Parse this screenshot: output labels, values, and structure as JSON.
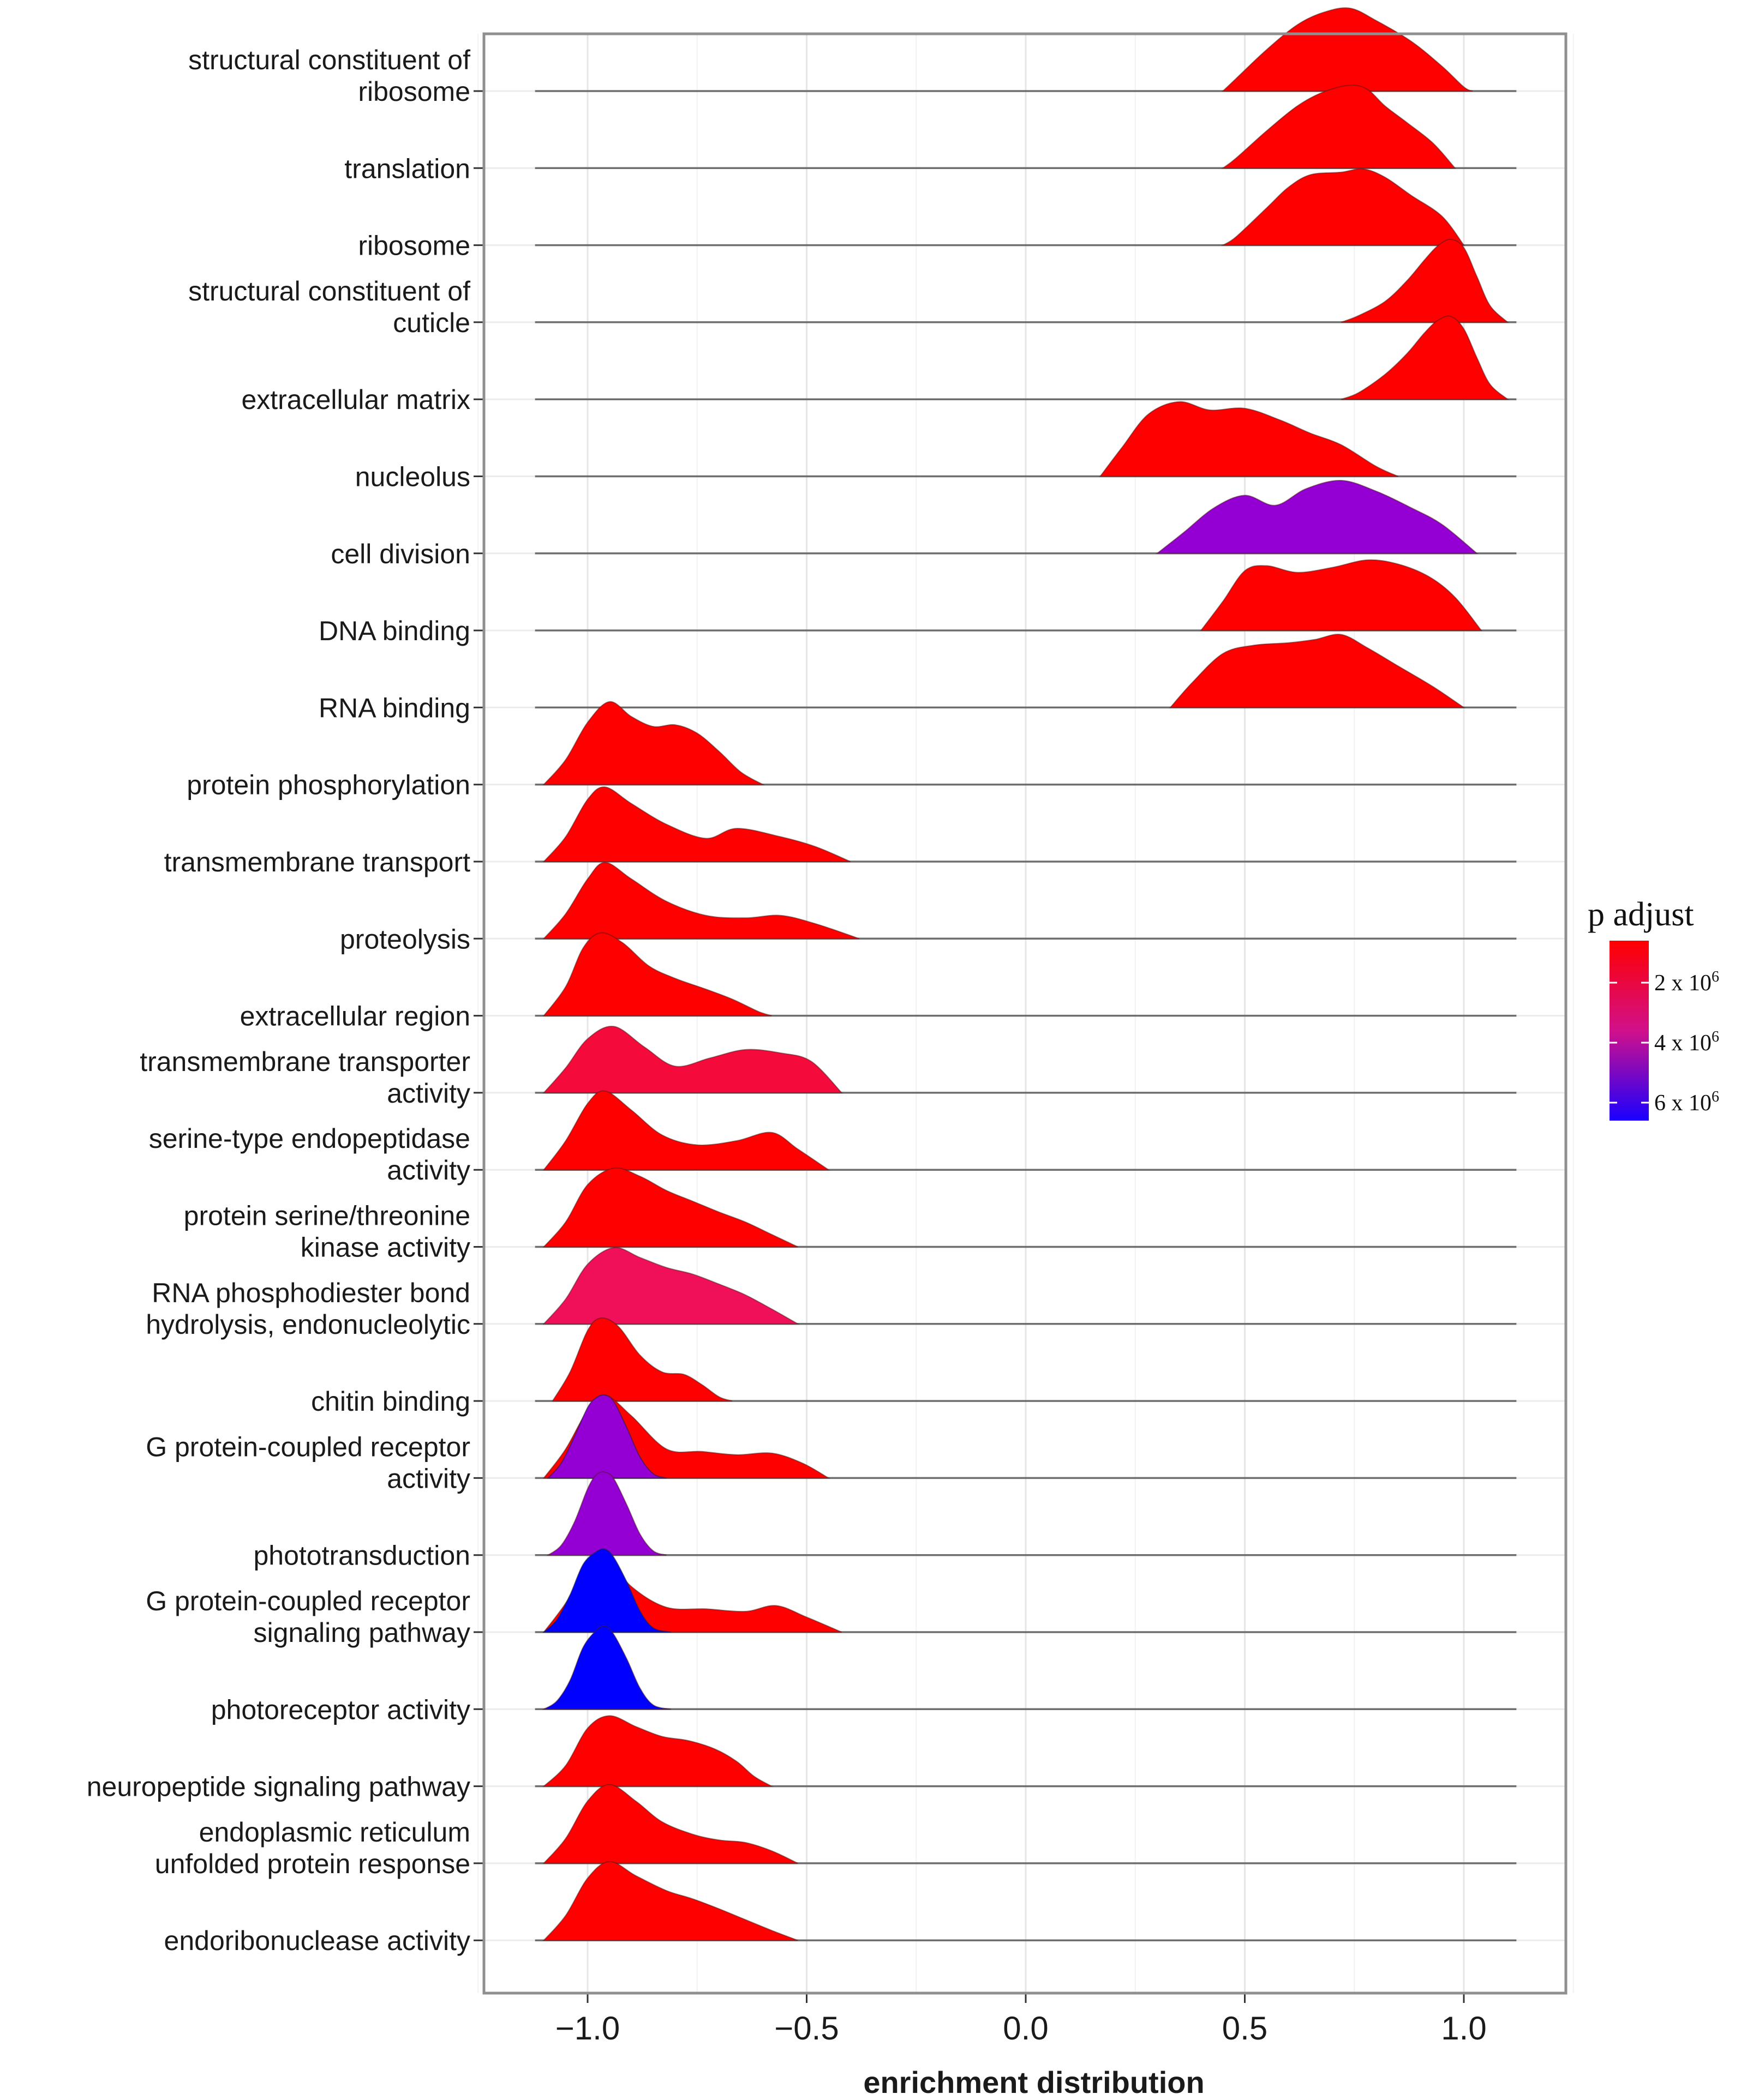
{
  "chart_data": {
    "type": "ridgeline",
    "xlabel": "enrichment distribution",
    "ylabel": "",
    "xlim": [
      -1.25,
      1.25
    ],
    "xticks": [
      -1.0,
      -0.5,
      0.0,
      0.5,
      1.0
    ],
    "xtick_labels": [
      "−1.0",
      "−0.5",
      "0.0",
      "0.5",
      "1.0"
    ],
    "grid": true,
    "legend": {
      "title": "p adjust",
      "placement": "right",
      "colors": [
        "#ff0000",
        "#9400d3",
        "#0000ff"
      ],
      "entries": [
        {
          "label": "2 x 10",
          "sup": "6",
          "value": 2
        },
        {
          "label": "4 x 10",
          "sup": "6",
          "value": 4
        },
        {
          "label": "6 x 10",
          "sup": "6",
          "value": 6
        }
      ],
      "range": [
        0.6,
        6.6
      ]
    },
    "baseline_range": [
      -1.12,
      1.12
    ],
    "series": [
      {
        "name": "structural constituent of ribosome",
        "label_lines": [
          "structural constituent of",
          "ribosome"
        ],
        "color": "#ff0000",
        "x": [
          0.45,
          0.48,
          0.55,
          0.62,
          0.68,
          0.74,
          0.8,
          0.88,
          0.95,
          1.0,
          1.02
        ],
        "density": [
          0,
          0.15,
          0.5,
          0.8,
          0.95,
          1.0,
          0.85,
          0.6,
          0.3,
          0.05,
          0
        ]
      },
      {
        "name": "translation",
        "label_lines": [
          "translation"
        ],
        "color": "#ff0000",
        "x": [
          0.45,
          0.48,
          0.55,
          0.62,
          0.68,
          0.74,
          0.78,
          0.82,
          0.87,
          0.93,
          0.98
        ],
        "density": [
          0,
          0.12,
          0.45,
          0.75,
          0.92,
          1.0,
          0.95,
          0.75,
          0.55,
          0.3,
          0
        ]
      },
      {
        "name": "ribosome",
        "label_lines": [
          "ribosome"
        ],
        "color": "#ff0000",
        "x": [
          0.45,
          0.48,
          0.55,
          0.6,
          0.65,
          0.72,
          0.77,
          0.82,
          0.88,
          0.95,
          1.0
        ],
        "density": [
          0,
          0.1,
          0.45,
          0.7,
          0.85,
          0.88,
          0.92,
          0.82,
          0.6,
          0.35,
          0
        ]
      },
      {
        "name": "structural constituent of cuticle",
        "label_lines": [
          "structural constituent of",
          "cuticle"
        ],
        "color": "#ff0000",
        "x": [
          0.72,
          0.76,
          0.82,
          0.87,
          0.91,
          0.94,
          0.97,
          1.0,
          1.03,
          1.06,
          1.1
        ],
        "density": [
          0,
          0.08,
          0.25,
          0.5,
          0.75,
          0.92,
          1.0,
          0.9,
          0.55,
          0.2,
          0
        ]
      },
      {
        "name": "extracellular matrix",
        "label_lines": [
          "extracellular matrix"
        ],
        "color": "#ff0000",
        "x": [
          0.72,
          0.76,
          0.82,
          0.87,
          0.91,
          0.94,
          0.97,
          1.0,
          1.03,
          1.06,
          1.1
        ],
        "density": [
          0,
          0.08,
          0.3,
          0.55,
          0.8,
          0.95,
          1.0,
          0.85,
          0.5,
          0.18,
          0
        ]
      },
      {
        "name": "nucleolus",
        "label_lines": [
          "nucleolus"
        ],
        "color": "#ff0000",
        "x": [
          0.17,
          0.22,
          0.28,
          0.35,
          0.42,
          0.5,
          0.58,
          0.65,
          0.72,
          0.8,
          0.85
        ],
        "density": [
          0,
          0.35,
          0.75,
          0.9,
          0.8,
          0.82,
          0.68,
          0.52,
          0.38,
          0.12,
          0
        ]
      },
      {
        "name": "cell division",
        "label_lines": [
          "cell division"
        ],
        "color": "#9400d3",
        "x": [
          0.3,
          0.36,
          0.43,
          0.5,
          0.57,
          0.64,
          0.72,
          0.8,
          0.88,
          0.95,
          1.03
        ],
        "density": [
          0,
          0.25,
          0.55,
          0.7,
          0.58,
          0.78,
          0.88,
          0.75,
          0.55,
          0.35,
          0
        ]
      },
      {
        "name": "DNA binding",
        "label_lines": [
          "DNA binding"
        ],
        "color": "#ff0000",
        "x": [
          0.4,
          0.45,
          0.5,
          0.55,
          0.62,
          0.7,
          0.78,
          0.85,
          0.92,
          0.98,
          1.04
        ],
        "density": [
          0,
          0.35,
          0.72,
          0.78,
          0.7,
          0.76,
          0.85,
          0.8,
          0.65,
          0.4,
          0
        ]
      },
      {
        "name": "RNA binding",
        "label_lines": [
          "RNA binding"
        ],
        "color": "#ff0000",
        "x": [
          0.33,
          0.38,
          0.45,
          0.52,
          0.6,
          0.66,
          0.72,
          0.78,
          0.85,
          0.93,
          1.0
        ],
        "density": [
          0,
          0.3,
          0.65,
          0.75,
          0.78,
          0.82,
          0.88,
          0.72,
          0.5,
          0.25,
          0
        ]
      },
      {
        "name": "protein phosphorylation",
        "label_lines": [
          "protein phosphorylation"
        ],
        "color": "#ff0000",
        "x": [
          -1.1,
          -1.05,
          -1.0,
          -0.95,
          -0.9,
          -0.85,
          -0.8,
          -0.75,
          -0.7,
          -0.65,
          -0.6
        ],
        "density": [
          0,
          0.3,
          0.75,
          1.0,
          0.82,
          0.7,
          0.72,
          0.62,
          0.4,
          0.15,
          0
        ]
      },
      {
        "name": "transmembrane transport",
        "label_lines": [
          "transmembrane transport"
        ],
        "color": "#ff0000",
        "x": [
          -1.1,
          -1.05,
          -1.0,
          -0.96,
          -0.9,
          -0.82,
          -0.73,
          -0.66,
          -0.56,
          -0.48,
          -0.4
        ],
        "density": [
          0,
          0.3,
          0.75,
          0.9,
          0.7,
          0.45,
          0.28,
          0.4,
          0.3,
          0.18,
          0
        ]
      },
      {
        "name": "proteolysis",
        "label_lines": [
          "proteolysis"
        ],
        "color": "#ff0000",
        "x": [
          -1.1,
          -1.05,
          -1.0,
          -0.96,
          -0.9,
          -0.82,
          -0.73,
          -0.64,
          -0.56,
          -0.48,
          -0.38
        ],
        "density": [
          0,
          0.3,
          0.72,
          0.92,
          0.72,
          0.45,
          0.28,
          0.25,
          0.28,
          0.18,
          0
        ]
      },
      {
        "name": "extracellular region",
        "label_lines": [
          "extracellular region"
        ],
        "color": "#ff0000",
        "x": [
          -1.1,
          -1.05,
          -1.01,
          -0.97,
          -0.92,
          -0.86,
          -0.8,
          -0.73,
          -0.67,
          -0.61,
          -0.58
        ],
        "density": [
          0,
          0.35,
          0.82,
          1.0,
          0.88,
          0.6,
          0.45,
          0.32,
          0.2,
          0.05,
          0
        ]
      },
      {
        "name": "transmembrane transporter activity",
        "label_lines": [
          "transmembrane transporter",
          "activity"
        ],
        "color": "#f50a3c",
        "x": [
          -1.1,
          -1.05,
          -1.0,
          -0.94,
          -0.87,
          -0.8,
          -0.72,
          -0.64,
          -0.56,
          -0.49,
          -0.42
        ],
        "density": [
          0,
          0.3,
          0.65,
          0.8,
          0.55,
          0.32,
          0.42,
          0.52,
          0.48,
          0.38,
          0
        ]
      },
      {
        "name": "serine-type endopeptidase activity",
        "label_lines": [
          "serine-type endopeptidase",
          "activity"
        ],
        "color": "#ff0000",
        "x": [
          -1.1,
          -1.05,
          -1.0,
          -0.96,
          -0.9,
          -0.83,
          -0.75,
          -0.66,
          -0.58,
          -0.52,
          -0.45
        ],
        "density": [
          0,
          0.35,
          0.8,
          0.95,
          0.72,
          0.42,
          0.3,
          0.35,
          0.45,
          0.25,
          0
        ]
      },
      {
        "name": "protein serine/threonine kinase activity",
        "label_lines": [
          "protein serine/threonine",
          "kinase activity"
        ],
        "color": "#ff0000",
        "x": [
          -1.1,
          -1.05,
          -1.0,
          -0.94,
          -0.88,
          -0.82,
          -0.76,
          -0.7,
          -0.64,
          -0.58,
          -0.52
        ],
        "density": [
          0,
          0.3,
          0.75,
          0.95,
          0.85,
          0.68,
          0.55,
          0.42,
          0.3,
          0.15,
          0
        ]
      },
      {
        "name": "RNA phosphodiester bond hydrolysis, endonucleolytic",
        "label_lines": [
          "RNA phosphodiester bond",
          "hydrolysis, endonucleolytic"
        ],
        "color": "#f0105a",
        "x": [
          -1.1,
          -1.05,
          -1.0,
          -0.94,
          -0.88,
          -0.82,
          -0.76,
          -0.7,
          -0.64,
          -0.58,
          -0.52
        ],
        "density": [
          0,
          0.3,
          0.72,
          0.92,
          0.8,
          0.68,
          0.6,
          0.48,
          0.35,
          0.18,
          0
        ]
      },
      {
        "name": "chitin binding",
        "label_lines": [
          "chitin binding"
        ],
        "color": "#ff0000",
        "x": [
          -1.08,
          -1.04,
          -1.0,
          -0.97,
          -0.93,
          -0.88,
          -0.83,
          -0.78,
          -0.74,
          -0.7,
          -0.67
        ],
        "density": [
          0,
          0.35,
          0.85,
          1.0,
          0.9,
          0.55,
          0.35,
          0.32,
          0.2,
          0.05,
          0
        ]
      },
      {
        "name": "G protein-coupled receptor activity",
        "label_lines": [
          "G protein-coupled receptor",
          "activity"
        ],
        "color": "#ff0000",
        "x": [
          -1.1,
          -1.05,
          -1.0,
          -0.96,
          -0.9,
          -0.82,
          -0.74,
          -0.66,
          -0.58,
          -0.51,
          -0.45
        ],
        "density": [
          0,
          0.35,
          0.82,
          1.0,
          0.75,
          0.35,
          0.32,
          0.28,
          0.3,
          0.18,
          0
        ]
      },
      {
        "name": "phototransduction",
        "label_lines": [
          "phototransduction"
        ],
        "color": "#9400d3",
        "x": [
          -1.09,
          -1.06,
          -1.03,
          -1.0,
          -0.98,
          -0.96,
          -0.94,
          -0.91,
          -0.88,
          -0.85,
          -0.82
        ],
        "density": [
          0,
          0.12,
          0.4,
          0.8,
          0.97,
          1.0,
          0.92,
          0.6,
          0.25,
          0.05,
          0
        ]
      },
      {
        "name": "G protein-coupled receptor signaling pathway",
        "label_lines": [
          "G protein-coupled receptor",
          "signaling pathway"
        ],
        "color": "#ff0000",
        "x": [
          -1.1,
          -1.05,
          -1.0,
          -0.96,
          -0.9,
          -0.82,
          -0.73,
          -0.64,
          -0.57,
          -0.5,
          -0.42
        ],
        "density": [
          0,
          0.35,
          0.8,
          0.92,
          0.55,
          0.3,
          0.28,
          0.25,
          0.32,
          0.18,
          0
        ]
      },
      {
        "name": "photoreceptor activity",
        "label_lines": [
          "photoreceptor activity"
        ],
        "color": "#0000ff",
        "x": [
          -1.1,
          -1.07,
          -1.04,
          -1.01,
          -0.98,
          -0.96,
          -0.94,
          -0.91,
          -0.88,
          -0.85,
          -0.81
        ],
        "density": [
          0,
          0.1,
          0.35,
          0.75,
          0.95,
          1.0,
          0.9,
          0.6,
          0.25,
          0.05,
          0
        ]
      },
      {
        "name": "neuropeptide signaling pathway",
        "label_lines": [
          "neuropeptide signaling pathway"
        ],
        "color": "#ff0000",
        "x": [
          -1.1,
          -1.05,
          -1.0,
          -0.95,
          -0.89,
          -0.83,
          -0.77,
          -0.71,
          -0.66,
          -0.62,
          -0.58
        ],
        "density": [
          0,
          0.25,
          0.7,
          0.85,
          0.72,
          0.6,
          0.55,
          0.45,
          0.3,
          0.12,
          0
        ]
      },
      {
        "name": "endoplasmic reticulum unfolded protein response",
        "label_lines": [
          "endoplasmic reticulum",
          "unfolded protein response"
        ],
        "color": "#ff0000",
        "x": [
          -1.1,
          -1.05,
          -1.0,
          -0.95,
          -0.89,
          -0.83,
          -0.76,
          -0.7,
          -0.64,
          -0.58,
          -0.52
        ],
        "density": [
          0,
          0.3,
          0.75,
          0.95,
          0.75,
          0.5,
          0.35,
          0.28,
          0.25,
          0.15,
          0
        ]
      },
      {
        "name": "endoribonuclease activity",
        "label_lines": [
          "endoribonuclease activity"
        ],
        "color": "#ff0000",
        "x": [
          -1.1,
          -1.05,
          -1.0,
          -0.95,
          -0.89,
          -0.82,
          -0.76,
          -0.7,
          -0.64,
          -0.58,
          -0.52
        ],
        "density": [
          0,
          0.3,
          0.75,
          0.95,
          0.78,
          0.6,
          0.5,
          0.38,
          0.25,
          0.12,
          0
        ]
      }
    ],
    "overlays": [
      {
        "name": "G protein-coupled receptor activity",
        "color": "#9400d3",
        "x": [
          -1.09,
          -1.06,
          -1.03,
          -1.0,
          -0.98,
          -0.96,
          -0.94,
          -0.91,
          -0.88,
          -0.85,
          -0.82
        ],
        "density": [
          0,
          0.18,
          0.5,
          0.85,
          0.97,
          1.0,
          0.92,
          0.6,
          0.25,
          0.05,
          0
        ]
      },
      {
        "name": "G protein-coupled receptor signaling pathway",
        "color": "#0000ff",
        "x": [
          -1.1,
          -1.07,
          -1.04,
          -1.01,
          -0.98,
          -0.96,
          -0.94,
          -0.91,
          -0.88,
          -0.85,
          -0.81
        ],
        "density": [
          0,
          0.15,
          0.45,
          0.82,
          0.97,
          1.0,
          0.9,
          0.6,
          0.25,
          0.05,
          0
        ]
      }
    ]
  }
}
